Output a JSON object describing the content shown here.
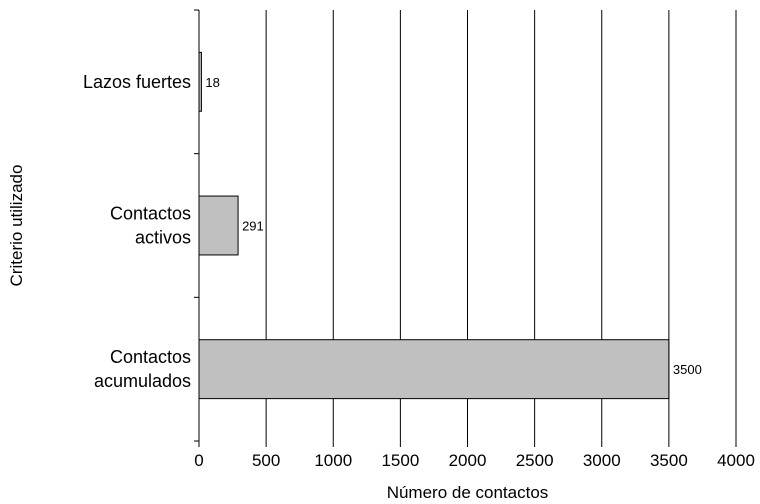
{
  "chart_data": {
    "type": "bar",
    "orientation": "horizontal",
    "categories": [
      [
        "Lazos fuertes"
      ],
      [
        "Contactos",
        "activos"
      ],
      [
        "Contactos",
        "acumulados"
      ]
    ],
    "values": [
      18,
      291,
      3500
    ],
    "data_labels": [
      "18",
      "291",
      "3500"
    ],
    "xlabel": "Número de contactos",
    "ylabel": "Criterio utilizado",
    "xlim": [
      0,
      4000
    ],
    "xticks": [
      "0",
      "500",
      "1000",
      "1500",
      "2000",
      "2500",
      "3000",
      "3500",
      "4000"
    ],
    "grid": "vertical",
    "bar_color": "#c0c0c0",
    "bar_stroke": "#000000"
  }
}
